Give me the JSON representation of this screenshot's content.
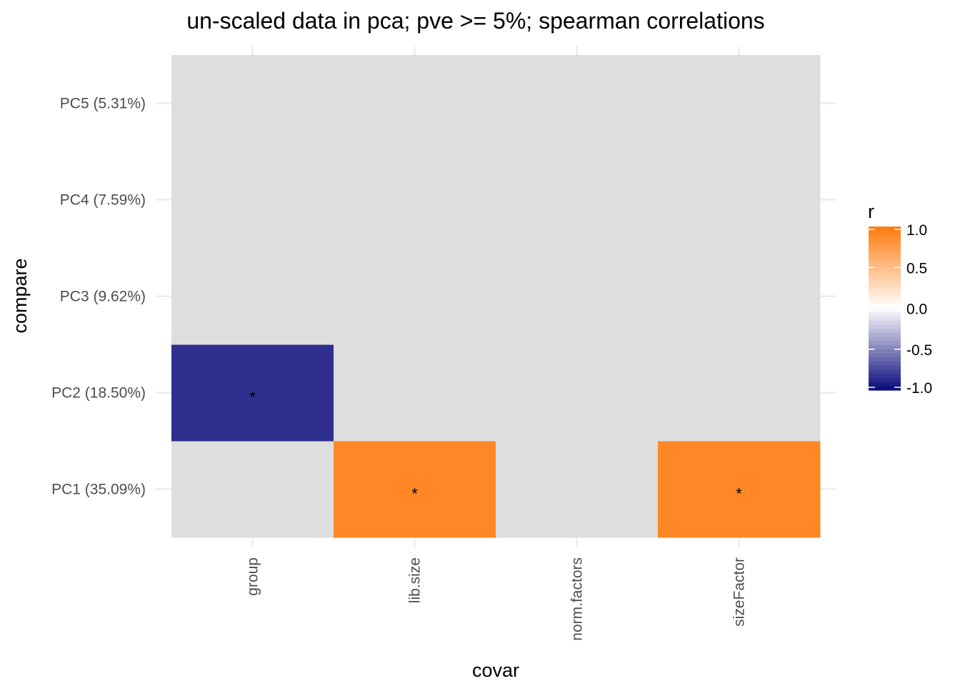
{
  "chart_data": {
    "type": "heatmap",
    "title": "un-scaled  data in pca; pve >= 5%; spearman correlations",
    "xlabel": "covar",
    "ylabel": "compare",
    "x_categories": [
      "group",
      "lib.size",
      "norm.factors",
      "sizeFactor"
    ],
    "y_categories": [
      "PC1 (35.09%)",
      "PC2 (18.50%)",
      "PC3 (9.62%)",
      "PC4 (7.59%)",
      "PC5 (5.31%)"
    ],
    "cells": [
      {
        "x": "group",
        "y": "PC2 (18.50%)",
        "r": -0.85,
        "label": "*"
      },
      {
        "x": "lib.size",
        "y": "PC1 (35.09%)",
        "r": 0.9,
        "label": "*"
      },
      {
        "x": "sizeFactor",
        "y": "PC1 (35.09%)",
        "r": 0.9,
        "label": "*"
      }
    ],
    "legend": {
      "title": "r",
      "ticks": [
        "1.0",
        "0.5",
        "0.0",
        "-0.5",
        "-1.0"
      ],
      "tick_values": [
        1.0,
        0.5,
        0.0,
        -0.5,
        -1.0
      ],
      "range": [
        -1.0,
        1.0
      ],
      "position": "right"
    },
    "colors": {
      "missing": "#dedede",
      "high": "#ff7a0d",
      "mid": "#ffffff",
      "low": "#0a0a7a",
      "grid": "#e8e8e8"
    }
  }
}
